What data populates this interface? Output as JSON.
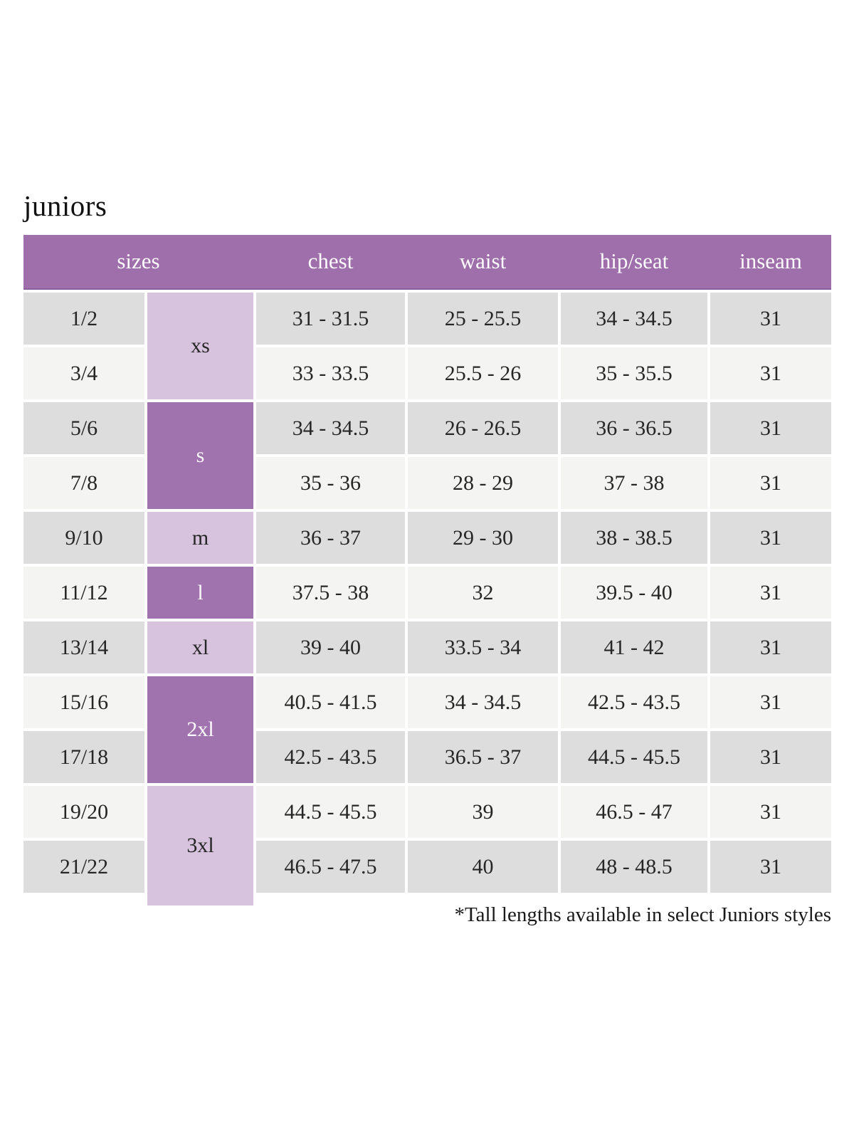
{
  "title": "juniors",
  "colors": {
    "header_purple": "#9e6fab",
    "header_border": "#8a5f97",
    "dark_purple_cell": "#a173ae",
    "light_purple_cell": "#d8c3de",
    "row_dark_gray": "#dedddd",
    "row_light_gray": "#f4f4f3",
    "header_text": "#fdfbfd",
    "body_text": "#262626"
  },
  "chart_data": {
    "type": "table",
    "title": "juniors",
    "columns": [
      "sizes",
      "chest",
      "waist",
      "hip/seat",
      "inseam"
    ],
    "size_groups": [
      {
        "label": "xs",
        "rows_spanned": 2,
        "shade": "light"
      },
      {
        "label": "s",
        "rows_spanned": 2,
        "shade": "dark"
      },
      {
        "label": "m",
        "rows_spanned": 1,
        "shade": "light"
      },
      {
        "label": "l",
        "rows_spanned": 1,
        "shade": "dark"
      },
      {
        "label": "xl",
        "rows_spanned": 1,
        "shade": "light"
      },
      {
        "label": "2xl",
        "rows_spanned": 2,
        "shade": "dark"
      },
      {
        "label": "3xl",
        "rows_spanned": 2,
        "shade": "light"
      }
    ],
    "rows": [
      {
        "size": "1/2",
        "chest": "31 - 31.5",
        "waist": "25 - 25.5",
        "hip_seat": "34 - 34.5",
        "inseam": "31"
      },
      {
        "size": "3/4",
        "chest": "33 - 33.5",
        "waist": "25.5 - 26",
        "hip_seat": "35 - 35.5",
        "inseam": "31"
      },
      {
        "size": "5/6",
        "chest": "34 - 34.5",
        "waist": "26 - 26.5",
        "hip_seat": "36 - 36.5",
        "inseam": "31"
      },
      {
        "size": "7/8",
        "chest": "35 - 36",
        "waist": "28 - 29",
        "hip_seat": "37 - 38",
        "inseam": "31"
      },
      {
        "size": "9/10",
        "chest": "36 - 37",
        "waist": "29 - 30",
        "hip_seat": "38 - 38.5",
        "inseam": "31"
      },
      {
        "size": "11/12",
        "chest": "37.5 - 38",
        "waist": "32",
        "hip_seat": "39.5 - 40",
        "inseam": "31"
      },
      {
        "size": "13/14",
        "chest": "39 - 40",
        "waist": "33.5 - 34",
        "hip_seat": "41 - 42",
        "inseam": "31"
      },
      {
        "size": "15/16",
        "chest": "40.5 - 41.5",
        "waist": "34 - 34.5",
        "hip_seat": "42.5 - 43.5",
        "inseam": "31"
      },
      {
        "size": "17/18",
        "chest": "42.5 - 43.5",
        "waist": "36.5 - 37",
        "hip_seat": "44.5 - 45.5",
        "inseam": "31"
      },
      {
        "size": "19/20",
        "chest": "44.5 - 45.5",
        "waist": "39",
        "hip_seat": "46.5 - 47",
        "inseam": "31"
      },
      {
        "size": "21/22",
        "chest": "46.5 - 47.5",
        "waist": "40",
        "hip_seat": "48 - 48.5",
        "inseam": "31"
      }
    ],
    "footnote": "*Tall lengths available in select Juniors styles"
  }
}
